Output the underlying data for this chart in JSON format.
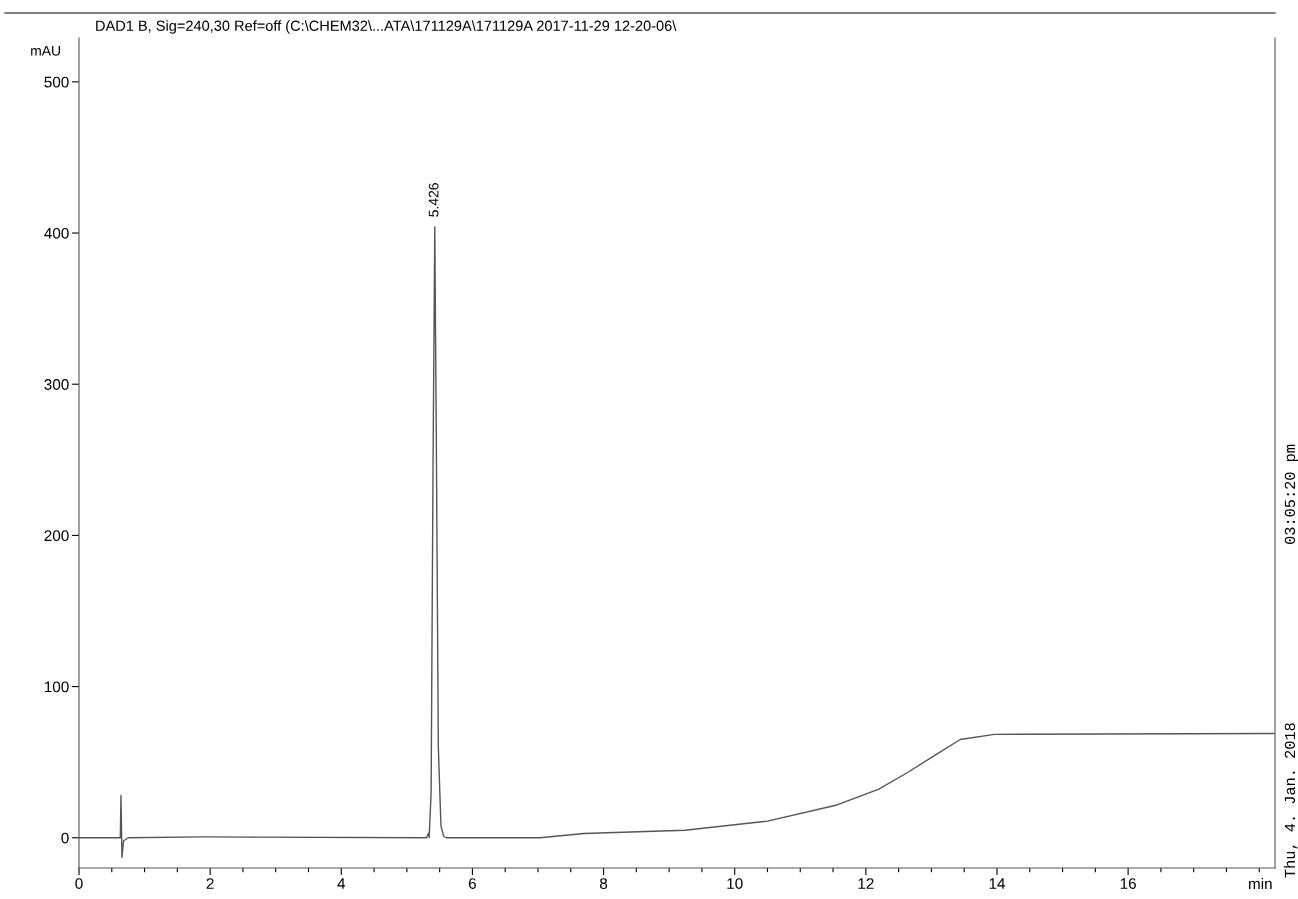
{
  "chart_data": {
    "type": "line",
    "title": "DAD1 B, Sig=240,30 Ref=off (C:\\CHEM32\\...ATA\\171129A\\171129A 2017-11-29 12-20-06\\",
    "xlabel": "min",
    "ylabel": "mAU",
    "annotations": [
      {
        "text": "5.426",
        "x": 5.426,
        "y": 404
      },
      "Thu, 4. Jan. 2018",
      "03:05:20 pm"
    ],
    "series": [
      {
        "color": "#555555",
        "x": [
          0,
          0.6,
          0.63,
          0.64,
          0.655,
          0.68,
          0.75,
          1.9,
          2.6,
          5.3,
          5.33,
          5.34,
          5.37,
          5.4,
          5.426,
          5.45,
          5.48,
          5.52,
          5.56,
          5.6,
          7.03,
          7.7,
          9.24,
          10.5,
          11.56,
          12.19,
          12.63,
          13.07,
          13.44,
          13.96,
          18.23
        ],
        "values": [
          0,
          0,
          0,
          28,
          -13,
          -2,
          0,
          0.6,
          0.4,
          0,
          3,
          0,
          30,
          250,
          404,
          260,
          60,
          8,
          1,
          0,
          0,
          2.8,
          5,
          11,
          21.7,
          32,
          43,
          55,
          65,
          68.4,
          69
        ]
      }
    ],
    "xlim": [
      0,
      18.24
    ],
    "ylim": [
      -20,
      529
    ],
    "xticks": [
      0,
      {
        "value": 0.5,
        "label": null
      },
      {
        "value": 1,
        "label": null
      },
      {
        "value": 1.5,
        "label": null
      },
      2,
      {
        "value": 2.5,
        "label": null
      },
      {
        "value": 3,
        "label": null
      },
      {
        "value": 3.5,
        "label": null
      },
      4,
      {
        "value": 4.5,
        "label": null
      },
      {
        "value": 5,
        "label": null
      },
      {
        "value": 5.5,
        "label": null
      },
      6,
      {
        "value": 6.5,
        "label": null
      },
      {
        "value": 7,
        "label": null
      },
      {
        "value": 7.5,
        "label": null
      },
      8,
      {
        "value": 8.5,
        "label": null
      },
      {
        "value": 9,
        "label": null
      },
      {
        "value": 9.5,
        "label": null
      },
      10,
      {
        "value": 10.5,
        "label": null
      },
      {
        "value": 11,
        "label": null
      },
      {
        "value": 11.5,
        "label": null
      },
      12,
      {
        "value": 12.5,
        "label": null
      },
      {
        "value": 13,
        "label": null
      },
      {
        "value": 13.5,
        "label": null
      },
      14,
      {
        "value": 14.5,
        "label": null
      },
      {
        "value": 15,
        "label": null
      },
      {
        "value": 15.5,
        "label": null
      },
      16,
      {
        "value": 16.5,
        "label": null
      },
      {
        "value": 17,
        "label": null
      },
      {
        "value": 17.5,
        "label": null
      },
      {
        "value": 18,
        "label": null
      }
    ],
    "yticks": [
      0,
      100,
      200,
      300,
      400,
      500
    ],
    "grid": false,
    "legend": false
  }
}
